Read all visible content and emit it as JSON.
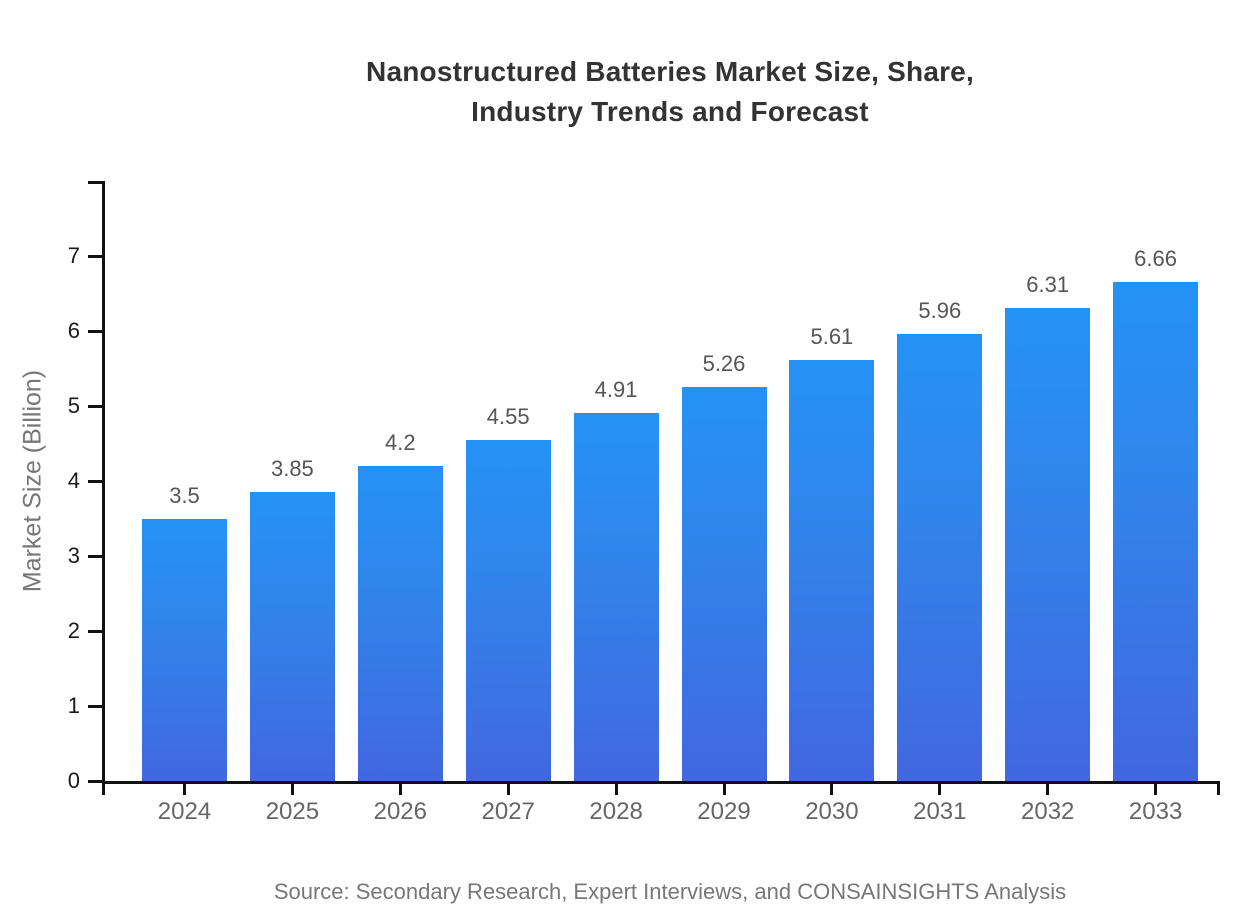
{
  "chart_data": {
    "type": "bar",
    "title": "Nanostructured Batteries Market Size, Share,\nIndustry Trends and Forecast",
    "ylabel": "Market Size (Billion)",
    "xlabel": "",
    "categories": [
      "2024",
      "2025",
      "2026",
      "2027",
      "2028",
      "2029",
      "2030",
      "2031",
      "2032",
      "2033"
    ],
    "values": [
      3.5,
      3.85,
      4.2,
      4.55,
      4.91,
      5.26,
      5.61,
      5.96,
      6.31,
      6.66
    ],
    "value_labels": [
      "3.5",
      "3.85",
      "4.2",
      "4.55",
      "4.91",
      "5.26",
      "5.61",
      "5.96",
      "6.31",
      "6.66"
    ],
    "ylim": [
      0,
      8
    ],
    "yticks": [
      0,
      1,
      2,
      3,
      4,
      5,
      6,
      7
    ],
    "grid": false,
    "legend": null,
    "source": "Source: Secondary Research, Expert Interviews, and CONSAINSIGHTS Analysis",
    "colors": {
      "bar_gradient_top": "#2492f5",
      "bar_gradient_bottom": "#4267df",
      "axis": "#111111",
      "title": "#333333",
      "value_label": "#555555",
      "category_label": "#666666",
      "y_tick_label": "#1a1a1a",
      "y_axis_title": "#777777",
      "source": "#777777",
      "background": "#ffffff"
    }
  }
}
